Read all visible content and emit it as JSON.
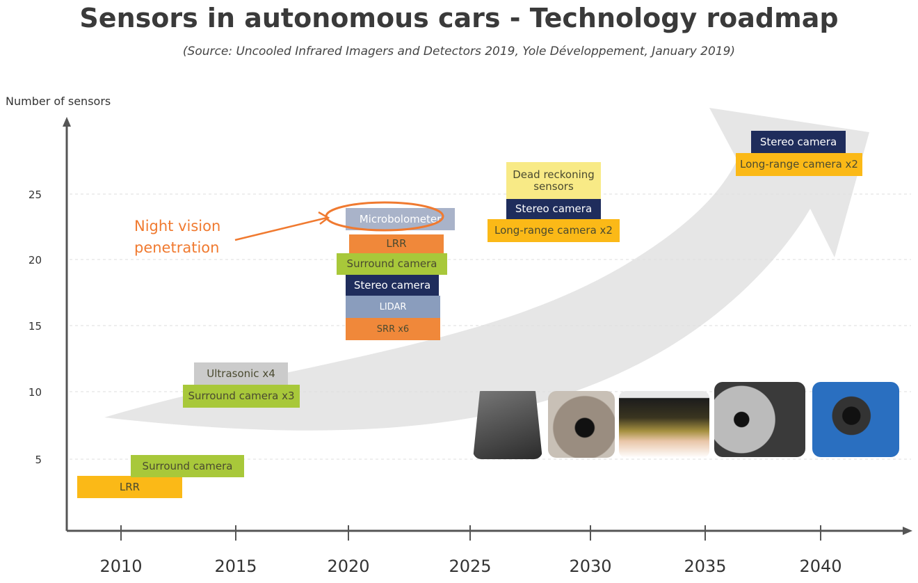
{
  "title": "Sensors in autonomous cars - Technology roadmap",
  "subtitle": "(Source: Uncooled Infrared Imagers and Detectors 2019, Yole Développement, January 2019)",
  "chart_data": {
    "type": "roadmap",
    "ylabel": "Number of sensors",
    "xticks": [
      "2010",
      "2015",
      "2020",
      "2025",
      "2030",
      "2035",
      "2040"
    ],
    "yticks": [
      "5",
      "10",
      "15",
      "20",
      "25"
    ],
    "grid": true,
    "annotation": "Night vision penetration",
    "highlighted": "Microbolometer",
    "stacks": [
      {
        "year": "2010",
        "items": [
          {
            "label": "LRR",
            "color": "#fbb917"
          },
          {
            "label": "Surround camera",
            "color": "#a8c83a"
          }
        ]
      },
      {
        "year": "2015",
        "items": [
          {
            "label": "Surround camera x3",
            "color": "#a8c83a"
          },
          {
            "label": "Ultrasonic x4",
            "color": "#cbcbcb"
          }
        ]
      },
      {
        "year": "2020",
        "items": [
          {
            "label": "SRR x6",
            "color": "#f0883a"
          },
          {
            "label": "LIDAR",
            "color": "#8a9dbd"
          },
          {
            "label": "Stereo camera",
            "color": "#1f2d5c"
          },
          {
            "label": "Surround camera",
            "color": "#a8c83a"
          },
          {
            "label": "LRR",
            "color": "#f0883a"
          },
          {
            "label": "Microbolometer",
            "color": "#a9b3c9"
          }
        ]
      },
      {
        "year": "2030",
        "items": [
          {
            "label": "Long-range camera x2",
            "color": "#fbb917"
          },
          {
            "label": "Stereo camera",
            "color": "#1f2d5c"
          },
          {
            "label": "Dead reckoning sensors",
            "color": "#f8ea86"
          }
        ]
      },
      {
        "year": "2040",
        "items": [
          {
            "label": "Long-range camera x2",
            "color": "#fbb917"
          },
          {
            "label": "Stereo camera",
            "color": "#1f2d5c"
          }
        ]
      }
    ]
  }
}
